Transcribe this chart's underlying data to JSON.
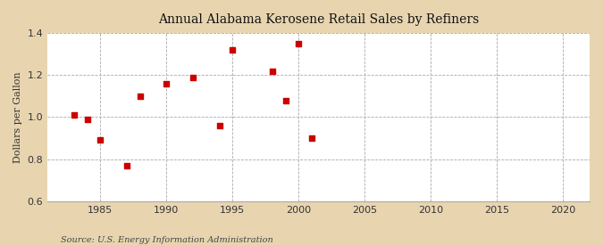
{
  "title": "Annual Alabama Kerosene Retail Sales by Refiners",
  "ylabel": "Dollars per Gallon",
  "source": "Source: U.S. Energy Information Administration",
  "fig_bg_color": "#e8d5b0",
  "plot_bg_color": "#ffffff",
  "marker_color": "#cc0000",
  "marker": "s",
  "marker_size": 4,
  "xlim": [
    1981,
    2022
  ],
  "ylim": [
    0.6,
    1.4
  ],
  "xticks": [
    1985,
    1990,
    1995,
    2000,
    2005,
    2010,
    2015,
    2020
  ],
  "yticks": [
    0.6,
    0.8,
    1.0,
    1.2,
    1.4
  ],
  "years": [
    1983,
    1984,
    1985,
    1987,
    1988,
    1990,
    1992,
    1994,
    1995,
    1998,
    1999,
    2000,
    2001
  ],
  "values": [
    1.01,
    0.99,
    0.89,
    0.77,
    1.1,
    1.16,
    1.19,
    0.96,
    1.32,
    1.22,
    1.08,
    1.35,
    0.9
  ]
}
